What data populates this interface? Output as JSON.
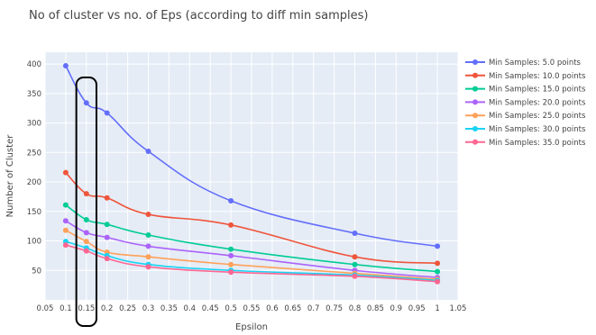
{
  "chart_data": {
    "type": "line",
    "title": "No of cluster vs no. of Eps (according to diff min samples)",
    "xlabel": "Epsilon",
    "ylabel": "Number of Cluster",
    "xlim": [
      0.05,
      1.05
    ],
    "ylim": [
      0,
      420
    ],
    "xticks": [
      "0.05",
      "0.1",
      "0.15",
      "0.2",
      "0.25",
      "0.3",
      "0.35",
      "0.4",
      "0.45",
      "0.5",
      "0.55",
      "0.6",
      "0.65",
      "0.7",
      "0.75",
      "0.8",
      "0.85",
      "0.9",
      "0.95",
      "1",
      "1.05"
    ],
    "yticks": [
      50,
      100,
      150,
      200,
      250,
      300,
      350,
      400
    ],
    "grid": true,
    "legend_position": "right",
    "x": [
      0.1,
      0.15,
      0.2,
      0.3,
      0.5,
      0.8,
      1.0
    ],
    "series": [
      {
        "name": "Min Samples: 5.0 points",
        "color": "#636efa",
        "values": [
          397,
          334,
          317,
          252,
          168,
          113,
          91
        ]
      },
      {
        "name": "Min Samples: 10.0 points",
        "color": "#ef553b",
        "values": [
          216,
          180,
          173,
          145,
          127,
          73,
          62
        ]
      },
      {
        "name": "Min Samples: 15.0 points",
        "color": "#00cc96",
        "values": [
          161,
          136,
          128,
          110,
          86,
          60,
          48
        ]
      },
      {
        "name": "Min Samples: 20.0 points",
        "color": "#ab63fa",
        "values": [
          134,
          114,
          106,
          91,
          75,
          50,
          38
        ]
      },
      {
        "name": "Min Samples: 25.0 points",
        "color": "#ffa15a",
        "values": [
          118,
          99,
          81,
          73,
          60,
          45,
          35
        ]
      },
      {
        "name": "Min Samples: 30.0 points",
        "color": "#19d3f3",
        "values": [
          99,
          88,
          75,
          60,
          50,
          42,
          33
        ]
      },
      {
        "name": "Min Samples: 35.0 points",
        "color": "#ff6692",
        "values": [
          93,
          83,
          70,
          56,
          47,
          40,
          31
        ]
      }
    ],
    "annotations": [
      {
        "type": "hand-drawn-box",
        "color": "#000000",
        "x_range": [
          0.13,
          0.17
        ]
      }
    ]
  }
}
